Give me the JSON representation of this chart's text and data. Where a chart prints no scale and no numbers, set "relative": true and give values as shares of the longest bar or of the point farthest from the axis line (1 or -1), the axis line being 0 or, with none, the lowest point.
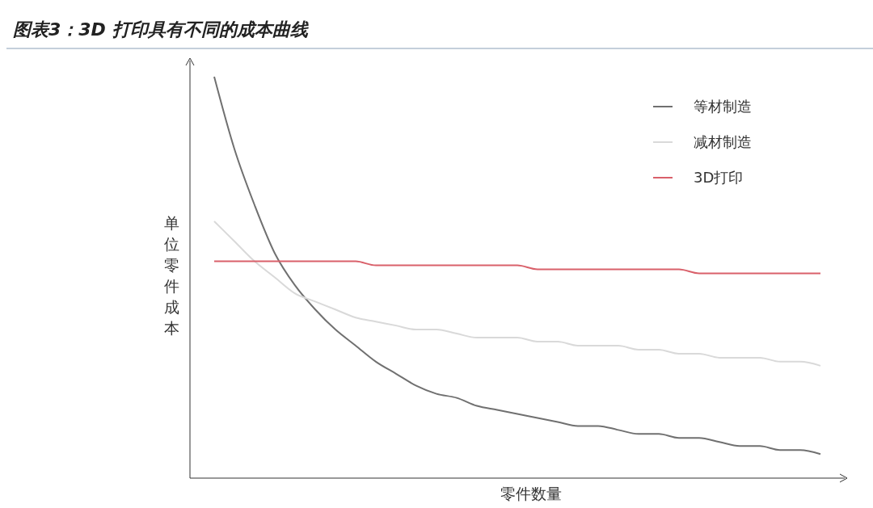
{
  "chart_data": {
    "type": "line",
    "title": "图表3：3D 打印具有不同的成本曲线",
    "xlabel": "零件数量",
    "ylabel": "单位零件成本",
    "relative": true,
    "grid": false,
    "legend": "top right",
    "marker": "none",
    "line_style": "solid",
    "categories": [
      null,
      null,
      null,
      null,
      null,
      null,
      null,
      null,
      null,
      null,
      null,
      null,
      null,
      null,
      null,
      null,
      null,
      null,
      null,
      null,
      null,
      null,
      null,
      null,
      null,
      null,
      null,
      null,
      null,
      null,
      null
    ],
    "series": [
      {
        "name": "等材制造",
        "color": "#707070",
        "values": [
          1.0,
          0.82,
          0.68,
          0.56,
          0.48,
          0.42,
          0.37,
          0.33,
          0.29,
          0.26,
          0.23,
          0.21,
          0.2,
          0.18,
          0.17,
          0.16,
          0.15,
          0.14,
          0.13,
          0.13,
          0.12,
          0.11,
          0.11,
          0.1,
          0.1,
          0.09,
          0.08,
          0.08,
          0.07,
          0.07,
          0.06
        ]
      },
      {
        "name": "减材制造",
        "color": "#d9d9d9",
        "values": [
          0.64,
          0.59,
          0.54,
          0.5,
          0.46,
          0.44,
          0.42,
          0.4,
          0.39,
          0.38,
          0.37,
          0.37,
          0.36,
          0.35,
          0.35,
          0.35,
          0.34,
          0.34,
          0.33,
          0.33,
          0.33,
          0.32,
          0.32,
          0.31,
          0.31,
          0.3,
          0.3,
          0.3,
          0.29,
          0.29,
          0.28
        ]
      },
      {
        "name": "3D打印",
        "color": "#d9606a",
        "values": [
          0.54,
          0.54,
          0.54,
          0.54,
          0.54,
          0.54,
          0.54,
          0.54,
          0.53,
          0.53,
          0.53,
          0.53,
          0.53,
          0.53,
          0.53,
          0.53,
          0.52,
          0.52,
          0.52,
          0.52,
          0.52,
          0.52,
          0.52,
          0.52,
          0.51,
          0.51,
          0.51,
          0.51,
          0.51,
          0.51,
          0.51
        ]
      }
    ]
  }
}
